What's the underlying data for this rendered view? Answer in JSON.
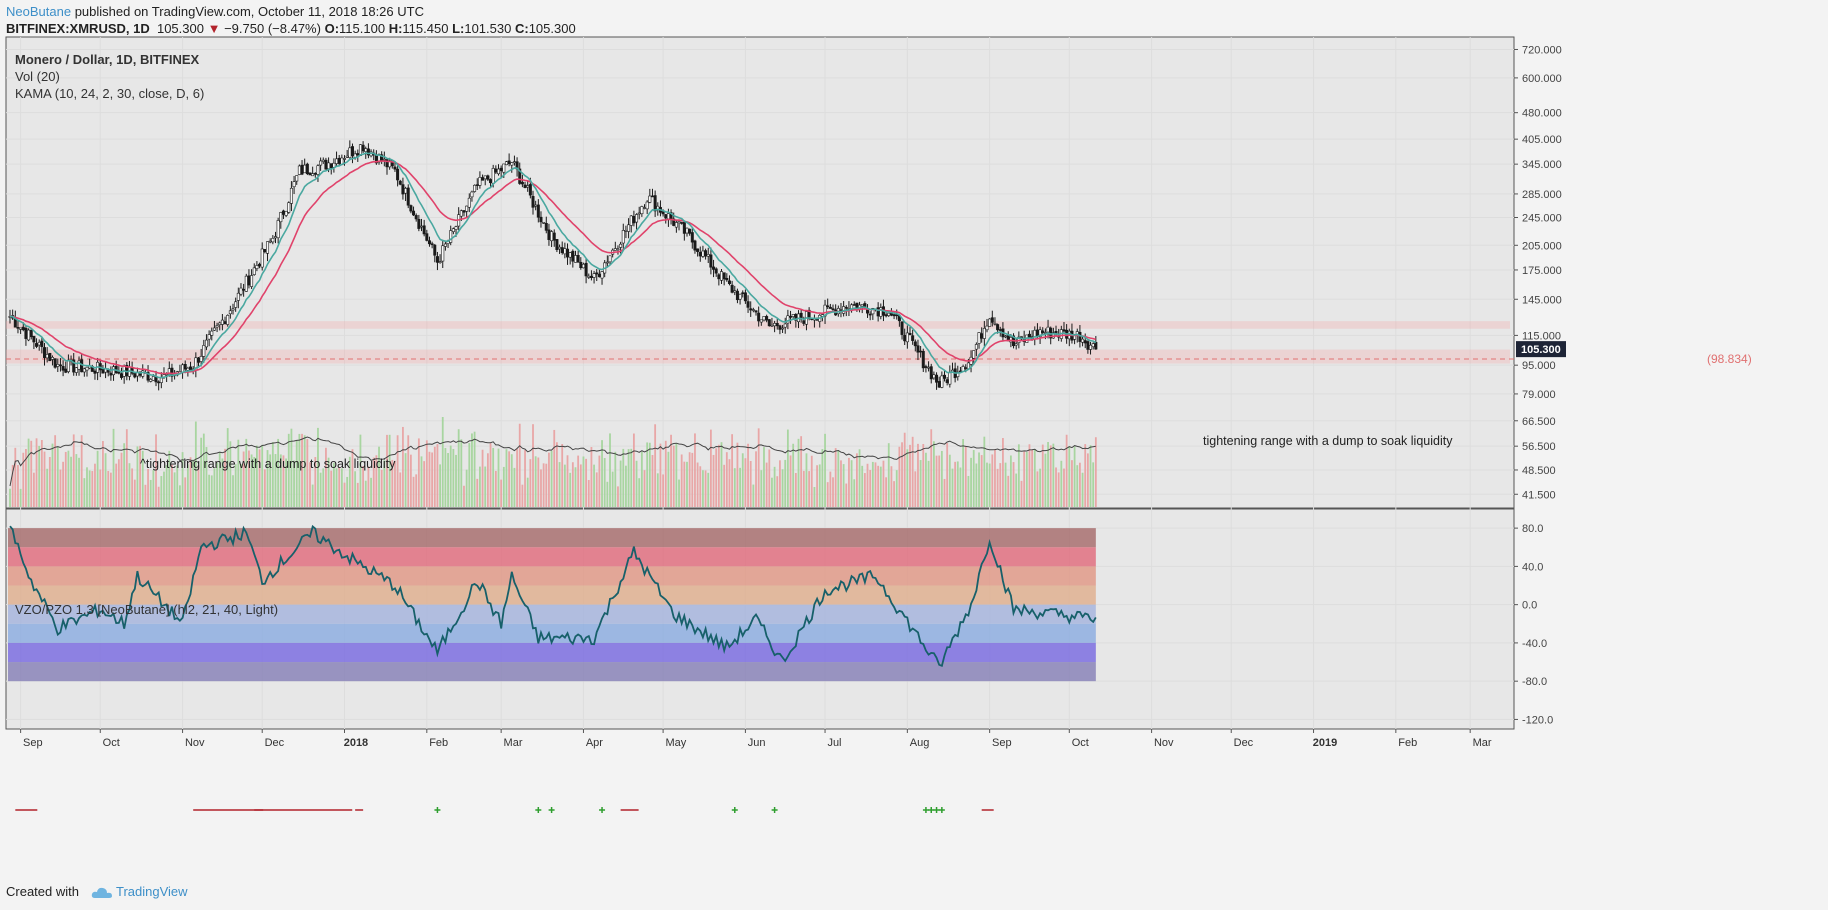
{
  "header": {
    "author": "NeoButane",
    "published": "published on TradingView.com, October 11, 2018 18:26 UTC",
    "symbol": "BITFINEX:XMRUSD, 1D",
    "last": "105.300",
    "change": "−9.750 (−8.47%)",
    "open_label": "O:",
    "open": "115.100",
    "high_label": "H:",
    "high": "115.450",
    "low_label": "L:",
    "low": "101.530",
    "close_label": "C:",
    "close": "105.300"
  },
  "legend": {
    "title": "Monero / Dollar, 1D, BITFINEX",
    "vol": "Vol (20)",
    "kama": "KAMA (10, 24, 2, 30, close, D, 6)",
    "osc": "VZO/PZO 1.3 [NeoButane] (hl2, 21, 40, Light)"
  },
  "footer": {
    "created_with": "Created with",
    "brand": "TradingView"
  },
  "colors": {
    "kama_slow": "#e0436b",
    "kama_fast": "#4aa8a0",
    "osc_line": "#17606a",
    "candle": "#1a1a1a",
    "vol_up": "#a8d5a0",
    "vol_down": "#e8a6a6",
    "signal_plus": "#2e9e2e",
    "signal_dash": "#b2232b",
    "price_tag": "#1d2436",
    "zone_line": "#f4a7a7"
  },
  "chart_data": [
    {
      "type": "candlestick",
      "title": "Monero / Dollar, 1D, BITFINEX",
      "scale": "log",
      "ylim": [
        38,
        780
      ],
      "x_tick_labels": [
        "Sep",
        "Oct",
        "Nov",
        "Dec",
        "2018",
        "Feb",
        "Mar",
        "Apr",
        "May",
        "Jun",
        "Jul",
        "Aug",
        "Sep",
        "Oct",
        "Nov",
        "Dec",
        "2019",
        "Feb",
        "Mar"
      ],
      "y_tick_labels": [
        "720.000",
        "600.000",
        "480.000",
        "405.000",
        "345.000",
        "285.000",
        "245.000",
        "205.000",
        "175.000",
        "145.000",
        "115.000",
        "95.000",
        "79.000",
        "66.500",
        "56.500",
        "48.500",
        "41.500"
      ],
      "y_tick_values": [
        720,
        600,
        480,
        405,
        345,
        285,
        245,
        205,
        175,
        145,
        115,
        95,
        79,
        66.5,
        56.5,
        48.5,
        41.5
      ],
      "approx_close_path": [
        {
          "date": "2017-08-28",
          "close": 130
        },
        {
          "date": "2017-09-15",
          "close": 95
        },
        {
          "date": "2017-10-05",
          "close": 92
        },
        {
          "date": "2017-10-25",
          "close": 88
        },
        {
          "date": "2017-11-05",
          "close": 95
        },
        {
          "date": "2017-11-20",
          "close": 140
        },
        {
          "date": "2017-12-05",
          "close": 215
        },
        {
          "date": "2017-12-15",
          "close": 330
        },
        {
          "date": "2017-12-25",
          "close": 345
        },
        {
          "date": "2018-01-08",
          "close": 390
        },
        {
          "date": "2018-01-20",
          "close": 330
        },
        {
          "date": "2018-02-05",
          "close": 185
        },
        {
          "date": "2018-02-20",
          "close": 300
        },
        {
          "date": "2018-03-05",
          "close": 350
        },
        {
          "date": "2018-03-20",
          "close": 215
        },
        {
          "date": "2018-04-05",
          "close": 165
        },
        {
          "date": "2018-04-25",
          "close": 280
        },
        {
          "date": "2018-05-10",
          "close": 220
        },
        {
          "date": "2018-05-25",
          "close": 160
        },
        {
          "date": "2018-06-10",
          "close": 122
        },
        {
          "date": "2018-06-25",
          "close": 130
        },
        {
          "date": "2018-07-10",
          "close": 140
        },
        {
          "date": "2018-07-25",
          "close": 135
        },
        {
          "date": "2018-08-13",
          "close": 84
        },
        {
          "date": "2018-08-25",
          "close": 100
        },
        {
          "date": "2018-09-01",
          "close": 132
        },
        {
          "date": "2018-09-10",
          "close": 108
        },
        {
          "date": "2018-09-20",
          "close": 118
        },
        {
          "date": "2018-10-05",
          "close": 115
        },
        {
          "date": "2018-10-11",
          "close": 105.3
        }
      ],
      "series": [
        {
          "name": "Vol (20)",
          "type": "bar"
        },
        {
          "name": "KAMA (10, 24, 2, 30, close, D, 6)",
          "type": "line"
        }
      ],
      "annotations": [
        {
          "text": "^tightening range with a dump to soak liquidity",
          "date": "2017-10-10",
          "price": 80
        },
        {
          "text": "tightening range with a dump to soak liquidity",
          "date": "2018-09-12",
          "price": 88
        },
        {
          "text": "(98.834)",
          "price": 98.834
        },
        {
          "text": "105.300",
          "price": 105.3
        }
      ],
      "zones": [
        {
          "from": 120,
          "to": 126
        },
        {
          "from": 96,
          "to": 105
        }
      ]
    },
    {
      "type": "line",
      "title": "VZO/PZO 1.3 [NeoButane] (hl2, 21, 40, Light)",
      "ylim": [
        -130,
        100
      ],
      "y_tick_labels": [
        "80.0",
        "40.0",
        "0.0",
        "-40.0",
        "-80.0",
        "-120.0"
      ],
      "y_tick_values": [
        80,
        40,
        0,
        -40,
        -80,
        -120
      ],
      "bands": [
        {
          "from": 60,
          "to": 80,
          "color": "#a87070"
        },
        {
          "from": 40,
          "to": 60,
          "color": "#e07080"
        },
        {
          "from": 20,
          "to": 40,
          "color": "#e09a88"
        },
        {
          "from": 0,
          "to": 20,
          "color": "#dfb090"
        },
        {
          "from": -20,
          "to": 0,
          "color": "#a7b5dd"
        },
        {
          "from": -40,
          "to": -20,
          "color": "#8eaee0"
        },
        {
          "from": -60,
          "to": -40,
          "color": "#7c6fe0"
        },
        {
          "from": -80,
          "to": -60,
          "color": "#8a84b8"
        }
      ],
      "values": [
        {
          "date": "2017-08-28",
          "v": 82
        },
        {
          "date": "2017-09-05",
          "v": 25
        },
        {
          "date": "2017-09-15",
          "v": -25
        },
        {
          "date": "2017-10-01",
          "v": -5
        },
        {
          "date": "2017-10-10",
          "v": -20
        },
        {
          "date": "2017-10-15",
          "v": 30
        },
        {
          "date": "2017-10-25",
          "v": 0
        },
        {
          "date": "2017-11-01",
          "v": -20
        },
        {
          "date": "2017-11-08",
          "v": 60
        },
        {
          "date": "2017-11-25",
          "v": 75
        },
        {
          "date": "2017-12-01",
          "v": 25
        },
        {
          "date": "2017-12-20",
          "v": 75
        },
        {
          "date": "2018-01-05",
          "v": 45
        },
        {
          "date": "2018-01-20",
          "v": 20
        },
        {
          "date": "2018-02-05",
          "v": -50
        },
        {
          "date": "2018-02-20",
          "v": 25
        },
        {
          "date": "2018-03-01",
          "v": -20
        },
        {
          "date": "2018-03-05",
          "v": 30
        },
        {
          "date": "2018-03-15",
          "v": -35
        },
        {
          "date": "2018-04-05",
          "v": -35
        },
        {
          "date": "2018-04-20",
          "v": 55
        },
        {
          "date": "2018-05-05",
          "v": -10
        },
        {
          "date": "2018-05-25",
          "v": -45
        },
        {
          "date": "2018-06-05",
          "v": -15
        },
        {
          "date": "2018-06-15",
          "v": -60
        },
        {
          "date": "2018-07-01",
          "v": 15
        },
        {
          "date": "2018-07-20",
          "v": 30
        },
        {
          "date": "2018-08-13",
          "v": -65
        },
        {
          "date": "2018-08-25",
          "v": 0
        },
        {
          "date": "2018-09-01",
          "v": 70
        },
        {
          "date": "2018-09-10",
          "v": -5
        },
        {
          "date": "2018-10-11",
          "v": -15
        }
      ]
    }
  ]
}
